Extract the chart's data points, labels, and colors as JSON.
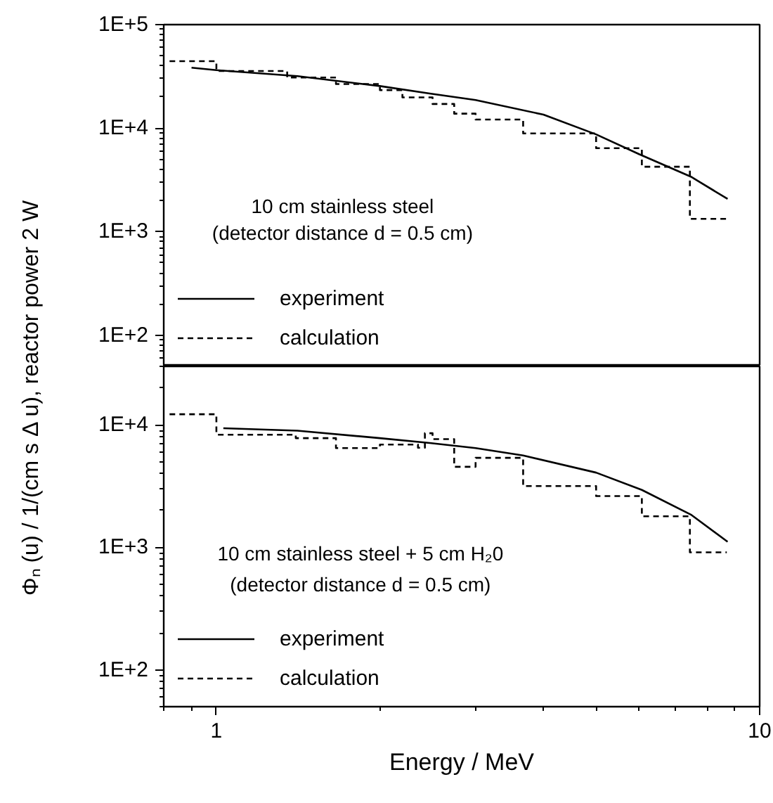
{
  "chart_data": [
    {
      "type": "line",
      "ylabel": "Φₙ (u) / 1/(cm  s Δ u), reactor power 2 W",
      "log": "xy",
      "xlim": [
        0.8,
        10
      ],
      "xticks": [
        1,
        10
      ],
      "ylim": [
        50,
        100000
      ],
      "yticks": [
        {
          "value": 100,
          "label": "1E+2"
        },
        {
          "value": 1000,
          "label": "1E+3"
        },
        {
          "value": 10000,
          "label": "1E+4"
        },
        {
          "value": 100000,
          "label": "1E+5"
        }
      ],
      "tick_labels": "y",
      "legend": "bottom left",
      "grid": false,
      "annotations": [
        "10 cm stainless steel",
        "(detector distance d = 0.5 cm)"
      ],
      "series": [
        {
          "name": "experiment",
          "line_style": "solid",
          "color": "#000000",
          "x": [
            0.9,
            1.0,
            1.41,
            2.0,
            2.47,
            3.0,
            4.0,
            5.0,
            6.0,
            7.47,
            8.73
          ],
          "values": [
            38400,
            36300,
            31800,
            25500,
            21600,
            18700,
            13500,
            8700,
            5600,
            3400,
            2070
          ]
        },
        {
          "name": "calculation",
          "type": "step",
          "line_style": "dashed",
          "color": "#000000",
          "x": [
            0.82,
            1.0,
            1.35,
            1.66,
            2.0,
            2.2,
            2.5,
            2.74,
            3.0,
            3.67,
            5.0,
            6.07,
            7.44,
            8.7
          ],
          "values": [
            44300,
            35600,
            30800,
            26700,
            23300,
            19800,
            17100,
            13800,
            12100,
            8900,
            6400,
            4240,
            1330,
            1330
          ]
        }
      ]
    },
    {
      "type": "line",
      "xlabel": "Energy / MeV",
      "log": "xy",
      "xlim": [
        0.8,
        10
      ],
      "xticks": [
        1,
        10
      ],
      "ylim": [
        50,
        30000
      ],
      "yticks": [
        {
          "value": 100,
          "label": "1E+2"
        },
        {
          "value": 1000,
          "label": "1E+3"
        },
        {
          "value": 10000,
          "label": "1E+4"
        }
      ],
      "legend": "bottom left",
      "grid": false,
      "annotations": [
        "10 cm stainless steel + 5 cm H₂0",
        "(detector distance d = 0.5 cm)"
      ],
      "series": [
        {
          "name": "experiment",
          "line_style": "solid",
          "color": "#000000",
          "x": [
            1.03,
            1.41,
            2.0,
            2.47,
            3.0,
            3.67,
            5.0,
            6.07,
            7.47,
            8.73
          ],
          "values": [
            9370,
            8950,
            7780,
            7100,
            6460,
            5620,
            4070,
            2940,
            1850,
            1110
          ]
        },
        {
          "name": "calculation",
          "type": "step",
          "line_style": "dashed",
          "color": "#000000",
          "x": [
            0.82,
            1.0,
            1.4,
            1.66,
            2.0,
            2.35,
            2.42,
            2.5,
            2.74,
            3.0,
            3.67,
            5.0,
            6.07,
            7.44,
            8.7
          ],
          "values": [
            12200,
            8300,
            7780,
            6460,
            6900,
            6500,
            8530,
            7640,
            4540,
            5370,
            3160,
            2620,
            1790,
            910,
            910
          ]
        }
      ]
    }
  ]
}
